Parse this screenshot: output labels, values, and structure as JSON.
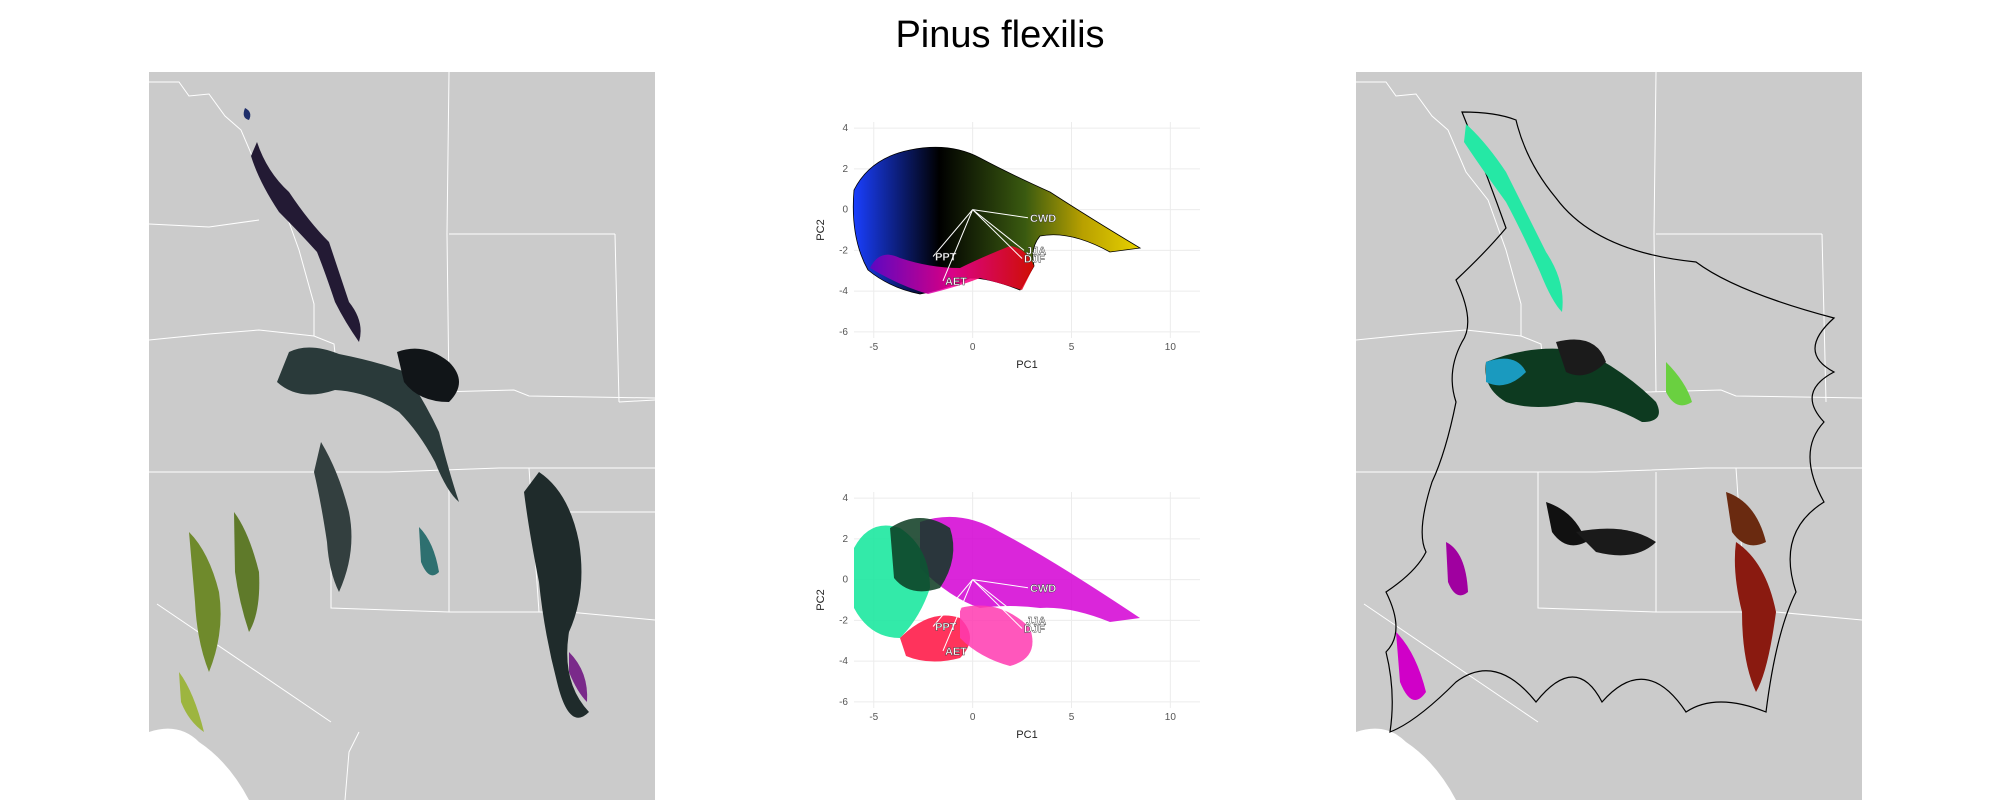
{
  "title": "Pinus flexilis",
  "colors": {
    "map_bg": "#cbcbcb",
    "border": "#ffffff",
    "grid": "#ececec"
  },
  "chart_data": [
    {
      "type": "scatter",
      "xlabel": "PC1",
      "ylabel": "PC2",
      "xlim": [
        -6,
        11.5
      ],
      "ylim": [
        -6.3,
        4.3
      ],
      "xticks": [
        -5,
        0,
        5,
        10
      ],
      "yticks": [
        4,
        2,
        0,
        -2,
        -4,
        -6
      ],
      "grid": true,
      "loadings": [
        {
          "label": "CWD",
          "x": 2.8,
          "y": -0.4
        },
        {
          "label": "JJA",
          "x": 2.6,
          "y": -2.0
        },
        {
          "label": "DJF",
          "x": 2.5,
          "y": -2.4
        },
        {
          "label": "PPT",
          "x": -2.0,
          "y": -2.3
        },
        {
          "label": "AET",
          "x": -1.5,
          "y": -3.5
        }
      ]
    },
    {
      "type": "scatter",
      "xlabel": "PC1",
      "ylabel": "PC2",
      "xlim": [
        -6,
        11.5
      ],
      "ylim": [
        -6.3,
        4.3
      ],
      "xticks": [
        -5,
        0,
        5,
        10
      ],
      "yticks": [
        4,
        2,
        0,
        -2,
        -4,
        -6
      ],
      "grid": true,
      "loadings": [
        {
          "label": "CWD",
          "x": 2.8,
          "y": -0.4
        },
        {
          "label": "JJA",
          "x": 2.6,
          "y": -2.0
        },
        {
          "label": "DJF",
          "x": 2.5,
          "y": -2.4
        },
        {
          "label": "PPT",
          "x": -2.0,
          "y": -2.3
        },
        {
          "label": "AET",
          "x": -1.5,
          "y": -3.5
        }
      ]
    }
  ]
}
